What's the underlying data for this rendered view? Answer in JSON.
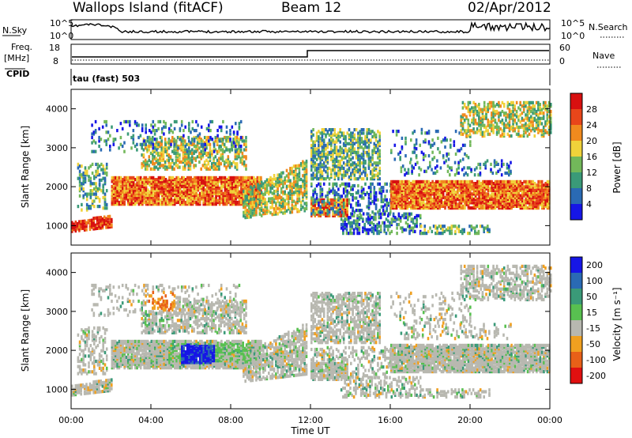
{
  "header": {
    "station": "Wallops Island (fitACF)",
    "beam": "Beam 12",
    "date": "02/Apr/2012"
  },
  "top_panel": {
    "left_label": "N.Sky",
    "left_ticks": [
      "10^5",
      "10^0"
    ],
    "right_label": "N.Search",
    "right_ticks": [
      "10^5",
      "10^0"
    ]
  },
  "freq_panel": {
    "left_label_1": "Freq.",
    "left_label_2": "[MHz]",
    "left_ticks": [
      "18",
      "8"
    ],
    "cpid_label": "CPID",
    "right_label": "Nave",
    "right_ticks": [
      "60",
      "0"
    ]
  },
  "program_label": "tau (fast) 503",
  "colors": {
    "power_scale": [
      "#1616e6",
      "#2a6ab4",
      "#3a9a78",
      "#72b85a",
      "#f0d23a",
      "#f08a1e",
      "#e8461a",
      "#d81010"
    ],
    "velocity_scale": [
      "#1616e6",
      "#2a6ab4",
      "#3a9a78",
      "#58c050",
      "#b8b8b0",
      "#f0a020",
      "#e86018",
      "#e01010"
    ]
  },
  "chart_data": [
    {
      "type": "heatmap",
      "title": "",
      "xlabel": "Time UT",
      "ylabel": "Slant Range [km]",
      "x_ticks": [
        "00:00",
        "04:00",
        "08:00",
        "12:00",
        "16:00",
        "20:00",
        "00:00"
      ],
      "x_range_hours": [
        0,
        24
      ],
      "y_ticks": [
        1000,
        2000,
        3000,
        4000
      ],
      "ylim": [
        500,
        4500
      ],
      "colorbar_label": "Power [dB]",
      "colorbar_ticks": [
        "4",
        "8",
        "12",
        "16",
        "20",
        "24",
        "28"
      ]
    },
    {
      "type": "heatmap",
      "title": "",
      "xlabel": "Time UT",
      "ylabel": "Slant Range [km]",
      "x_ticks": [
        "00:00",
        "04:00",
        "08:00",
        "12:00",
        "16:00",
        "20:00",
        "00:00"
      ],
      "x_range_hours": [
        0,
        24
      ],
      "y_ticks": [
        1000,
        2000,
        3000,
        4000
      ],
      "ylim": [
        500,
        4500
      ],
      "colorbar_label": "Velocity [m s⁻¹]",
      "colorbar_ticks": [
        "200",
        "100",
        "50",
        "15",
        "-15",
        "-50",
        "-100",
        "-200"
      ]
    }
  ]
}
